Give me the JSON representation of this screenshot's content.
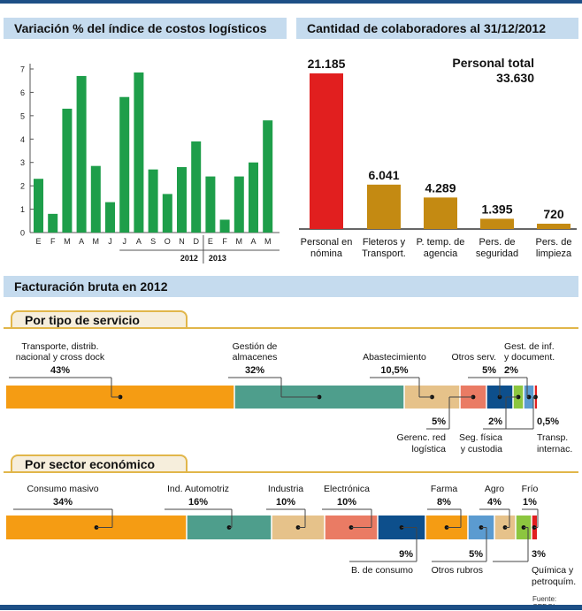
{
  "source": "Fuente: CEDOL",
  "chart_data": [
    {
      "type": "bar",
      "title": "Variación % del índice de costos logísticos",
      "categories": [
        "E",
        "F",
        "M",
        "A",
        "M",
        "J",
        "J",
        "A",
        "S",
        "O",
        "N",
        "D",
        "E",
        "F",
        "M",
        "A",
        "M"
      ],
      "values": [
        2.3,
        0.8,
        5.3,
        6.7,
        2.85,
        1.3,
        5.8,
        6.85,
        2.7,
        1.65,
        2.8,
        3.9,
        2.4,
        0.55,
        2.4,
        3.0,
        4.8
      ],
      "year_labels": [
        "2012",
        "2013"
      ],
      "yticks": [
        "0",
        "1",
        "2",
        "3",
        "4",
        "5",
        "6",
        "7"
      ],
      "ylim": [
        0,
        7
      ],
      "color": "#1e9e4a"
    },
    {
      "type": "bar",
      "title": "Cantidad de colaboradores al 31/12/2012",
      "total_label": "Personal total",
      "total_value": "33.630",
      "categories": [
        "Personal en nómina",
        "Fleteros y Transport.",
        "P. temp. de agencia",
        "Pers. de seguridad",
        "Pers. de limpieza"
      ],
      "category_lines": [
        [
          "Personal en",
          "nómina"
        ],
        [
          "Fleteros y",
          "Transport."
        ],
        [
          "P. temp. de",
          "agencia"
        ],
        [
          "Pers. de",
          "seguridad"
        ],
        [
          "Pers. de",
          "limpieza"
        ]
      ],
      "values": [
        21185,
        6041,
        4289,
        1395,
        720
      ],
      "value_labels": [
        "21.185",
        "6.041",
        "4.289",
        "1.395",
        "720"
      ],
      "colors": [
        "#e11f1f",
        "#c48a12",
        "#c48a12",
        "#c48a12",
        "#c48a12"
      ]
    },
    {
      "type": "bar",
      "orientation": "stacked-horizontal",
      "section_title": "Facturación bruta en 2012",
      "title": "Por tipo de servicio",
      "segments": [
        {
          "label": [
            "Transporte, distrib.",
            "nacional y cross dock"
          ],
          "pct": "43%",
          "value": 43,
          "color": "#f59c13",
          "pos": "above"
        },
        {
          "label": [
            "Gestión de",
            "almacenes"
          ],
          "pct": "32%",
          "value": 32,
          "color": "#4e9e8c",
          "pos": "above"
        },
        {
          "label": [
            "Abastecimiento"
          ],
          "pct": "10,5%",
          "value": 10.5,
          "color": "#e6c28a",
          "pos": "above"
        },
        {
          "label": [
            "Gerenc. red",
            "logística"
          ],
          "pct": "5%",
          "value": 5,
          "color": "#ea7b64",
          "pos": "below"
        },
        {
          "label": [
            "Otros serv."
          ],
          "pct": "5%",
          "value": 5,
          "color": "#0d4f8c",
          "pos": "above"
        },
        {
          "label": [
            "Seg. física",
            "y custodia"
          ],
          "pct": "2%",
          "value": 2,
          "color": "#8cc63f",
          "pos": "below"
        },
        {
          "label": [
            "Gest. de inf.",
            "y document."
          ],
          "pct": "2%",
          "value": 2,
          "color": "#5b9bd0",
          "pos": "above"
        },
        {
          "label": [
            "Transp.",
            "internac."
          ],
          "pct": "0,5%",
          "value": 0.5,
          "color": "#e11f1f",
          "pos": "below"
        }
      ]
    },
    {
      "type": "bar",
      "orientation": "stacked-horizontal",
      "title": "Por sector económico",
      "segments": [
        {
          "label": [
            "Consumo masivo"
          ],
          "pct": "34%",
          "value": 34,
          "color": "#f59c13",
          "pos": "above"
        },
        {
          "label": [
            "Ind. Automotriz"
          ],
          "pct": "16%",
          "value": 16,
          "color": "#4e9e8c",
          "pos": "above"
        },
        {
          "label": [
            "Industria"
          ],
          "pct": "10%",
          "value": 10,
          "color": "#e6c28a",
          "pos": "above"
        },
        {
          "label": [
            "Electrónica"
          ],
          "pct": "10%",
          "value": 10,
          "color": "#ea7b64",
          "pos": "above"
        },
        {
          "label": [
            "B. de consumo"
          ],
          "pct": "9%",
          "value": 9,
          "color": "#0d4f8c",
          "pos": "below"
        },
        {
          "label": [
            "Farma"
          ],
          "pct": "8%",
          "value": 8,
          "color": "#f59c13",
          "pos": "above"
        },
        {
          "label": [
            "Otros rubros"
          ],
          "pct": "5%",
          "value": 5,
          "color": "#5b9bd0",
          "pos": "below"
        },
        {
          "label": [
            "Agro"
          ],
          "pct": "4%",
          "value": 4,
          "color": "#e6c28a",
          "pos": "above"
        },
        {
          "label": [
            "Química y",
            "petroquím."
          ],
          "pct": "3%",
          "value": 3,
          "color": "#8cc63f",
          "pos": "below"
        },
        {
          "label": [
            "Frío"
          ],
          "pct": "1%",
          "value": 1,
          "color": "#e11f1f",
          "pos": "above"
        }
      ]
    }
  ]
}
